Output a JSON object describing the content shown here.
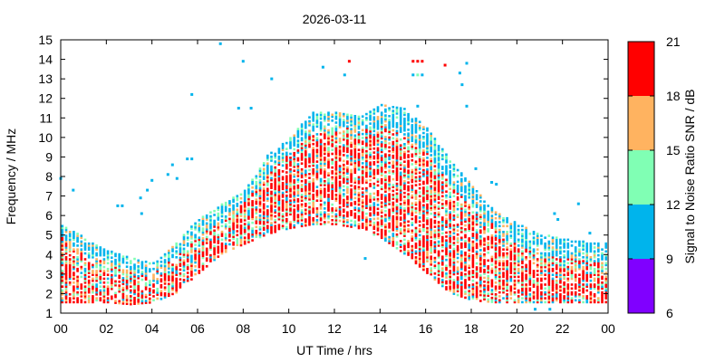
{
  "chart_data": {
    "type": "heatmap",
    "title": "2026-03-11",
    "xlabel": "UT Time / hrs",
    "ylabel": "Frequency / MHz",
    "xlim": [
      0,
      24
    ],
    "ylim": [
      1,
      15
    ],
    "x_ticks": [
      "00",
      "02",
      "04",
      "06",
      "08",
      "10",
      "12",
      "14",
      "16",
      "18",
      "20",
      "22",
      "00"
    ],
    "y_ticks": [
      "1",
      "2",
      "3",
      "4",
      "5",
      "6",
      "7",
      "8",
      "9",
      "10",
      "11",
      "12",
      "13",
      "14",
      "15"
    ],
    "colorbar": {
      "label": "Signal to Noise Ratio SNR / dB",
      "range": [
        6,
        21
      ],
      "ticks": [
        "6",
        "9",
        "12",
        "15",
        "18",
        "21"
      ],
      "bands": [
        {
          "from": 6,
          "to": 9,
          "color": "#8000ff"
        },
        {
          "from": 9,
          "to": 12,
          "color": "#00b4ec"
        },
        {
          "from": 12,
          "to": 15,
          "color": "#80ffb4"
        },
        {
          "from": 15,
          "to": 18,
          "color": "#ffb360"
        },
        {
          "from": 18,
          "to": 21,
          "color": "#ff0000"
        }
      ]
    },
    "profile": {
      "hours": [
        0,
        1,
        2,
        3,
        4,
        5,
        6,
        7,
        8,
        9,
        10,
        11,
        12,
        13,
        14,
        15,
        16,
        17,
        18,
        19,
        20,
        21,
        22,
        23,
        24
      ],
      "low_mhz": [
        1.5,
        1.5,
        1.5,
        1.4,
        1.5,
        2.0,
        3.0,
        4.0,
        4.5,
        5.0,
        5.3,
        5.5,
        5.5,
        5.3,
        4.8,
        4.0,
        3.0,
        2.0,
        1.6,
        1.5,
        1.5,
        1.5,
        1.5,
        1.5,
        1.5
      ],
      "high_mhz": [
        5.5,
        4.8,
        4.2,
        3.8,
        3.5,
        4.5,
        5.8,
        6.5,
        7.2,
        9.0,
        10.0,
        11.2,
        11.3,
        11.0,
        11.6,
        11.4,
        10.5,
        8.8,
        7.5,
        6.2,
        5.5,
        5.0,
        4.8,
        4.6,
        4.5
      ],
      "strong_mhz": [
        4.8,
        4.0,
        3.6,
        3.2,
        3.0,
        3.8,
        5.0,
        5.6,
        6.6,
        8.0,
        9.2,
        10.2,
        10.5,
        10.3,
        10.5,
        10.0,
        9.2,
        7.6,
        6.3,
        5.4,
        4.4,
        4.0,
        3.8,
        3.6,
        3.6
      ]
    },
    "outliers": [
      {
        "x": 0.0,
        "y": 7.9,
        "snr": 10
      },
      {
        "x": 0.55,
        "y": 7.3,
        "snr": 10
      },
      {
        "x": 2.5,
        "y": 6.5,
        "snr": 10
      },
      {
        "x": 2.7,
        "y": 6.5,
        "snr": 10
      },
      {
        "x": 3.5,
        "y": 6.9,
        "snr": 10
      },
      {
        "x": 3.55,
        "y": 6.1,
        "snr": 10
      },
      {
        "x": 3.8,
        "y": 7.3,
        "snr": 10
      },
      {
        "x": 4.0,
        "y": 7.8,
        "snr": 10
      },
      {
        "x": 4.7,
        "y": 8.1,
        "snr": 10
      },
      {
        "x": 4.9,
        "y": 8.6,
        "snr": 10
      },
      {
        "x": 5.1,
        "y": 7.9,
        "snr": 10
      },
      {
        "x": 5.55,
        "y": 8.9,
        "snr": 10
      },
      {
        "x": 5.75,
        "y": 8.9,
        "snr": 10
      },
      {
        "x": 5.75,
        "y": 12.2,
        "snr": 10
      },
      {
        "x": 7.0,
        "y": 14.8,
        "snr": 10
      },
      {
        "x": 7.8,
        "y": 11.5,
        "snr": 10
      },
      {
        "x": 8.0,
        "y": 13.9,
        "snr": 10
      },
      {
        "x": 8.35,
        "y": 11.5,
        "snr": 10
      },
      {
        "x": 9.25,
        "y": 13.0,
        "snr": 10
      },
      {
        "x": 11.5,
        "y": 13.6,
        "snr": 10
      },
      {
        "x": 12.45,
        "y": 13.2,
        "snr": 10
      },
      {
        "x": 12.65,
        "y": 13.9,
        "snr": 20
      },
      {
        "x": 15.45,
        "y": 13.9,
        "snr": 20
      },
      {
        "x": 15.65,
        "y": 13.9,
        "snr": 20
      },
      {
        "x": 15.85,
        "y": 13.9,
        "snr": 20
      },
      {
        "x": 15.65,
        "y": 13.2,
        "snr": 13
      },
      {
        "x": 15.45,
        "y": 13.2,
        "snr": 10
      },
      {
        "x": 15.85,
        "y": 13.2,
        "snr": 10
      },
      {
        "x": 16.85,
        "y": 13.7,
        "snr": 20
      },
      {
        "x": 17.5,
        "y": 13.3,
        "snr": 10
      },
      {
        "x": 17.6,
        "y": 12.7,
        "snr": 10
      },
      {
        "x": 17.8,
        "y": 13.8,
        "snr": 10
      },
      {
        "x": 17.8,
        "y": 11.6,
        "snr": 10
      },
      {
        "x": 15.65,
        "y": 11.6,
        "snr": 10
      },
      {
        "x": 13.35,
        "y": 3.8,
        "snr": 10
      },
      {
        "x": 20.8,
        "y": 1.2,
        "snr": 10
      },
      {
        "x": 21.45,
        "y": 1.2,
        "snr": 10
      },
      {
        "x": 21.65,
        "y": 6.1,
        "snr": 10
      },
      {
        "x": 21.8,
        "y": 5.8,
        "snr": 10
      },
      {
        "x": 22.7,
        "y": 6.6,
        "snr": 10
      },
      {
        "x": 23.2,
        "y": 5.1,
        "snr": 10
      },
      {
        "x": 18.9,
        "y": 7.7,
        "snr": 10
      },
      {
        "x": 19.1,
        "y": 7.6,
        "snr": 10
      },
      {
        "x": 18.2,
        "y": 8.4,
        "snr": 10
      }
    ],
    "grid": false,
    "legend": "colorbar-right"
  }
}
